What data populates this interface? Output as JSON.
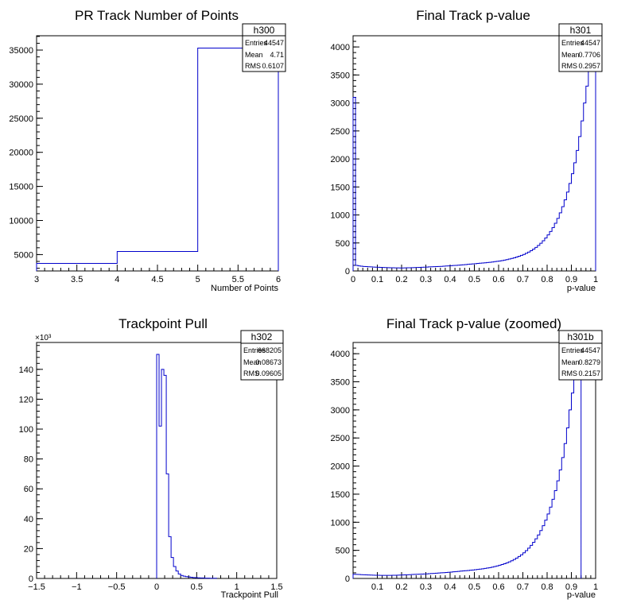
{
  "colors": {
    "line": "#0000cc",
    "frame": "#000000",
    "background": "#ffffff"
  },
  "chart_data": [
    {
      "type": "histogram",
      "title": "PR Track Number of Points",
      "xlabel": "Number of Points",
      "ylabel": "",
      "xlim": [
        3,
        6
      ],
      "ylim": [
        2600,
        37100
      ],
      "xticks": [
        3,
        3.5,
        4,
        4.5,
        5,
        5.5,
        6
      ],
      "xtick_labels": [
        "3",
        "3.5",
        "4",
        "4.5",
        "5",
        "5.5",
        "6"
      ],
      "yticks": [
        5000,
        10000,
        15000,
        20000,
        25000,
        30000,
        35000
      ],
      "ytick_labels": [
        "5000",
        "10000",
        "15000",
        "20000",
        "25000",
        "30000",
        "35000"
      ],
      "bins": {
        "x0": 3,
        "width": 1,
        "values": [
          3700,
          5450,
          35300
        ]
      },
      "stats": {
        "name": "h300",
        "rows": [
          {
            "label": "Entries",
            "value": "44547"
          },
          {
            "label": "Mean",
            "value": "4.71"
          },
          {
            "label": "RMS",
            "value": "0.6107"
          }
        ]
      }
    },
    {
      "type": "histogram",
      "title": "Final Track p-value",
      "xlabel": "p-value",
      "ylabel": "",
      "xlim": [
        0,
        1
      ],
      "ylim": [
        0,
        4200
      ],
      "xticks": [
        0,
        0.1,
        0.2,
        0.3,
        0.4,
        0.5,
        0.6,
        0.7,
        0.8,
        0.9,
        1
      ],
      "xtick_labels": [
        "0",
        "0.1",
        "0.2",
        "0.3",
        "0.4",
        "0.5",
        "0.6",
        "0.7",
        "0.8",
        "0.9",
        "1"
      ],
      "yticks": [
        0,
        500,
        1000,
        1500,
        2000,
        2500,
        3000,
        3500,
        4000
      ],
      "ytick_labels": [
        "0",
        "500",
        "1000",
        "1500",
        "2000",
        "2500",
        "3000",
        "3500",
        "4000"
      ],
      "bins": {
        "x0": 0,
        "width": 0.01,
        "values": [
          3100,
          100,
          90,
          85,
          80,
          78,
          75,
          72,
          70,
          68,
          66,
          64,
          62,
          60,
          58,
          57,
          56,
          55,
          55,
          54,
          54,
          55,
          56,
          57,
          58,
          60,
          62,
          64,
          66,
          68,
          70,
          72,
          74,
          76,
          78,
          80,
          82,
          85,
          88,
          91,
          94,
          97,
          100,
          103,
          106,
          110,
          114,
          118,
          122,
          126,
          130,
          134,
          138,
          142,
          146,
          150,
          155,
          160,
          166,
          172,
          178,
          185,
          193,
          202,
          212,
          223,
          235,
          248,
          262,
          278,
          295,
          315,
          337,
          362,
          390,
          421,
          456,
          495,
          539,
          588,
          643,
          705,
          774,
          852,
          939,
          1037,
          1147,
          1270,
          1408,
          1563,
          1737,
          1932,
          2151,
          2400,
          2680,
          3000,
          3300,
          3600,
          3850,
          4100
        ]
      },
      "stats": {
        "name": "h301",
        "rows": [
          {
            "label": "Entries",
            "value": "44547"
          },
          {
            "label": "Mean",
            "value": "0.7706"
          },
          {
            "label": "RMS",
            "value": "0.2957"
          }
        ]
      }
    },
    {
      "type": "histogram",
      "title": "Trackpoint Pull",
      "xlabel": "Trackpoint Pull",
      "ylabel": "",
      "exponent_label": "×10³",
      "xlim": [
        -1.5,
        1.5
      ],
      "ylim": [
        0,
        158
      ],
      "xticks": [
        -1.5,
        -1,
        -0.5,
        0,
        0.5,
        1,
        1.5
      ],
      "xtick_labels": [
        "−1.5",
        "−1",
        "−0.5",
        "0",
        "0.5",
        "1",
        "1.5"
      ],
      "yticks": [
        0,
        20,
        40,
        60,
        80,
        100,
        120,
        140
      ],
      "ytick_labels": [
        "0",
        "20",
        "40",
        "60",
        "80",
        "100",
        "120",
        "140"
      ],
      "bins": {
        "x0": 0,
        "width": 0.03,
        "values": [
          150,
          102,
          140,
          136,
          70,
          28,
          14,
          8,
          5,
          3,
          2,
          1.5,
          1.2,
          1,
          0.8,
          0.6,
          0.5,
          0.4,
          0.3,
          0.3,
          0.2,
          0.2,
          0.1,
          0.1,
          0.1
        ]
      },
      "stats": {
        "name": "h302",
        "rows": [
          {
            "label": "Entries",
            "value": "668205"
          },
          {
            "label": "Mean",
            "value": "0.08673"
          },
          {
            "label": "RMS",
            "value": "0.09605"
          }
        ]
      }
    },
    {
      "type": "histogram",
      "title": "Final Track p-value (zoomed)",
      "xlabel": "p-value",
      "ylabel": "",
      "xlim": [
        0,
        1
      ],
      "ylim": [
        0,
        4200
      ],
      "xticks": [
        0.1,
        0.2,
        0.3,
        0.4,
        0.5,
        0.6,
        0.7,
        0.8,
        0.9,
        1
      ],
      "xtick_labels": [
        "0.1",
        "0.2",
        "0.3",
        "0.4",
        "0.5",
        "0.6",
        "0.7",
        "0.8",
        "0.9",
        "1"
      ],
      "yticks": [
        0,
        500,
        1000,
        1500,
        2000,
        2500,
        3000,
        3500,
        4000
      ],
      "ytick_labels": [
        "0",
        "500",
        "1000",
        "1500",
        "2000",
        "2500",
        "3000",
        "3500",
        "4000"
      ],
      "bins": {
        "x0": 0,
        "width": 0.01,
        "values": [
          75,
          72,
          70,
          68,
          66,
          64,
          62,
          60,
          58,
          57,
          56,
          55,
          55,
          54,
          54,
          55,
          56,
          57,
          58,
          60,
          62,
          64,
          66,
          68,
          70,
          72,
          74,
          76,
          78,
          80,
          82,
          85,
          88,
          91,
          94,
          97,
          100,
          103,
          106,
          110,
          114,
          118,
          122,
          126,
          130,
          134,
          138,
          142,
          146,
          150,
          155,
          160,
          166,
          172,
          178,
          185,
          193,
          202,
          212,
          223,
          235,
          248,
          262,
          278,
          295,
          315,
          337,
          362,
          390,
          421,
          456,
          495,
          539,
          588,
          643,
          705,
          774,
          852,
          939,
          1037,
          1147,
          1270,
          1408,
          1563,
          1737,
          1932,
          2151,
          2400,
          2680,
          3000,
          3300,
          3600,
          3850,
          4100
        ]
      },
      "stats": {
        "name": "h301b",
        "rows": [
          {
            "label": "Entries",
            "value": "44547"
          },
          {
            "label": "Mean",
            "value": "0.8279"
          },
          {
            "label": "RMS",
            "value": "0.2157"
          }
        ]
      }
    }
  ]
}
